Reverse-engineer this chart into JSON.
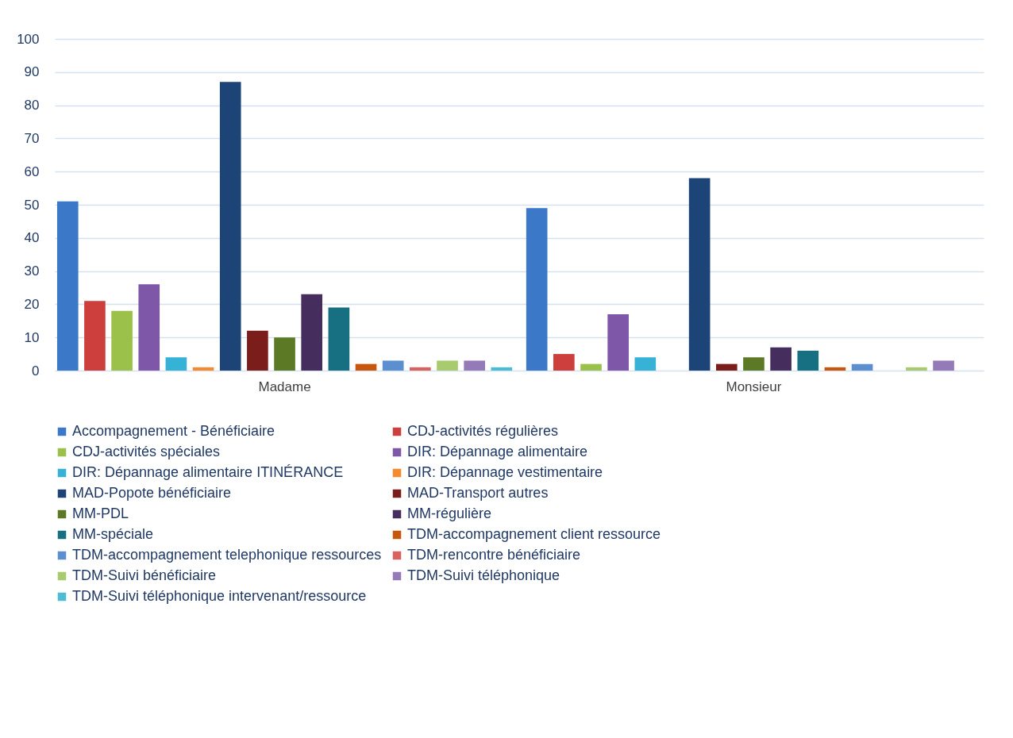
{
  "chart_data": {
    "type": "bar",
    "categories": [
      "Madame",
      "Monsieur"
    ],
    "ylim": [
      0,
      100
    ],
    "yticks": [
      0,
      10,
      20,
      30,
      40,
      50,
      60,
      70,
      80,
      90,
      100
    ],
    "grid": "y",
    "legend": "bottom",
    "series": [
      {
        "name": "Accompagnement - Bénéficiaire",
        "color": "#3c78c8",
        "values": [
          51,
          49
        ]
      },
      {
        "name": "CDJ-activités régulières",
        "color": "#cc3f3c",
        "values": [
          21,
          5
        ]
      },
      {
        "name": "CDJ-activités spéciales",
        "color": "#9bc14a",
        "values": [
          18,
          2
        ]
      },
      {
        "name": "DIR: Dépannage alimentaire",
        "color": "#7e57a8",
        "values": [
          26,
          17
        ]
      },
      {
        "name": "DIR: Dépannage alimentaire ITINÉRANCE",
        "color": "#35b2d6",
        "values": [
          4,
          4
        ]
      },
      {
        "name": "DIR: Dépannage vestimentaire",
        "color": "#f68a2e",
        "values": [
          1,
          null
        ]
      },
      {
        "name": "MAD-Popote bénéficiaire",
        "color": "#1d4477",
        "values": [
          87,
          58
        ]
      },
      {
        "name": "MAD-Transport autres",
        "color": "#7b1e1b",
        "values": [
          12,
          2
        ]
      },
      {
        "name": "MM-PDL",
        "color": "#5c7a25",
        "values": [
          10,
          4
        ]
      },
      {
        "name": "MM-régulière",
        "color": "#452e5e",
        "values": [
          23,
          7
        ]
      },
      {
        "name": "MM-spéciale",
        "color": "#176f82",
        "values": [
          19,
          6
        ]
      },
      {
        "name": "TDM-accompagnement client ressource",
        "color": "#c8570d",
        "values": [
          2,
          1
        ]
      },
      {
        "name": "TDM-accompagnement telephonique ressources",
        "color": "#5b8fd0",
        "values": [
          3,
          2
        ]
      },
      {
        "name": "TDM-rencontre bénéficiaire",
        "color": "#d9625e",
        "values": [
          1,
          null
        ]
      },
      {
        "name": "TDM-Suivi bénéficiaire",
        "color": "#a8cb70",
        "values": [
          3,
          1
        ]
      },
      {
        "name": "TDM-Suivi téléphonique",
        "color": "#957ab8",
        "values": [
          3,
          3
        ]
      },
      {
        "name": "TDM-Suivi téléphonique intervenant/ressource",
        "color": "#4cbcd6",
        "values": [
          1,
          null
        ]
      }
    ]
  }
}
